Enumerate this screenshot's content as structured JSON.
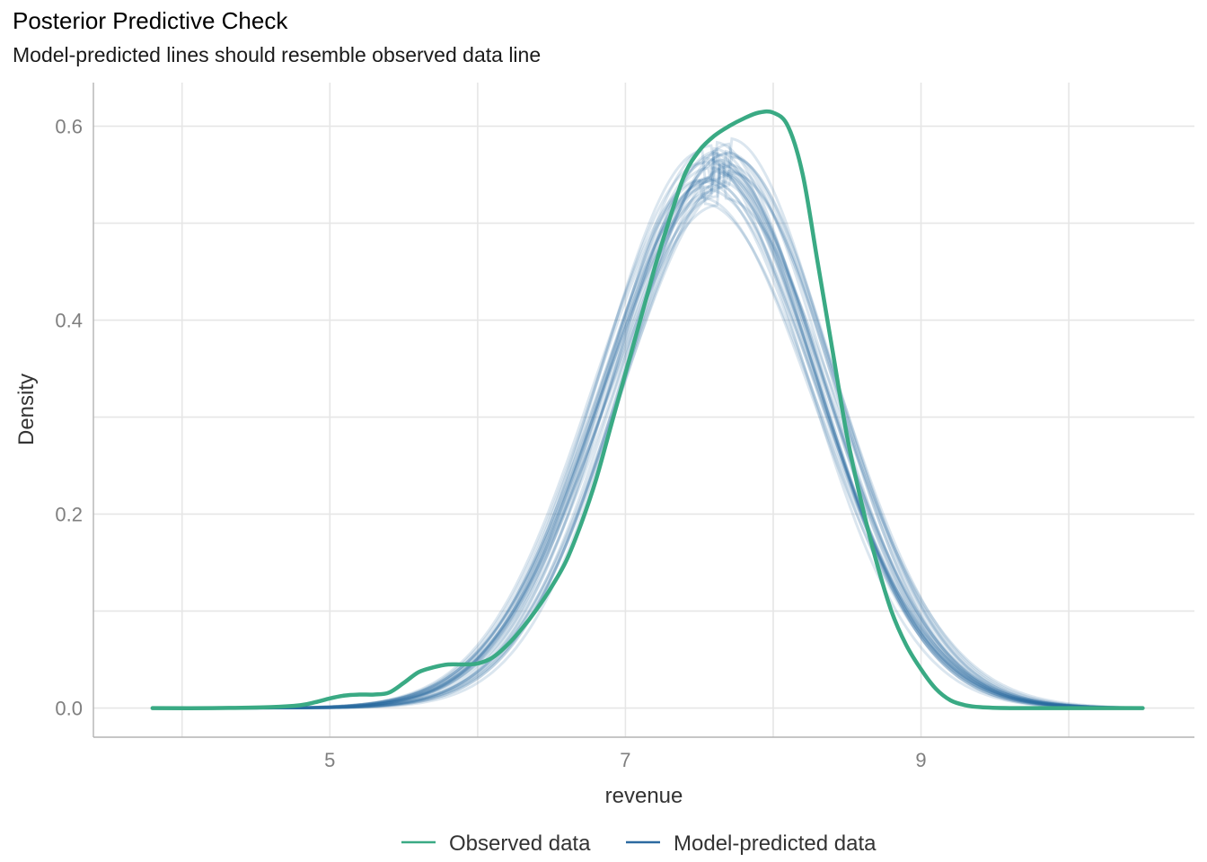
{
  "chart_data": {
    "type": "line",
    "title": "Posterior Predictive Check",
    "subtitle": "Model-predicted lines should resemble observed data line",
    "xlabel": "revenue",
    "ylabel": "Density",
    "xlim": [
      3.4,
      10.85
    ],
    "ylim": [
      -0.03,
      0.645
    ],
    "x_ticks": [
      5,
      7,
      9
    ],
    "x_tick_labels": [
      "5",
      "7",
      "9"
    ],
    "y_ticks": [
      0.0,
      0.2,
      0.4,
      0.6
    ],
    "y_tick_labels": [
      "0.0",
      "0.2",
      "0.4",
      "0.6"
    ],
    "grid": true,
    "legend_position": "bottom",
    "colors": {
      "observed": "#3aaa84",
      "predicted": "#2c6aa0"
    },
    "series": [
      {
        "name": "Observed data",
        "role": "observed",
        "x": [
          3.8,
          4.2,
          4.6,
          4.8,
          4.9,
          5.0,
          5.1,
          5.2,
          5.3,
          5.4,
          5.5,
          5.6,
          5.7,
          5.8,
          5.9,
          6.0,
          6.1,
          6.2,
          6.3,
          6.4,
          6.5,
          6.6,
          6.7,
          6.8,
          6.9,
          7.0,
          7.1,
          7.2,
          7.3,
          7.4,
          7.5,
          7.6,
          7.7,
          7.8,
          7.9,
          8.0,
          8.1,
          8.2,
          8.3,
          8.4,
          8.5,
          8.6,
          8.7,
          8.8,
          8.9,
          9.0,
          9.1,
          9.2,
          9.3,
          9.4,
          9.6,
          10.0,
          10.5
        ],
        "y": [
          0.0,
          0.0,
          0.001,
          0.003,
          0.006,
          0.01,
          0.013,
          0.014,
          0.014,
          0.016,
          0.026,
          0.037,
          0.042,
          0.045,
          0.045,
          0.046,
          0.052,
          0.065,
          0.082,
          0.102,
          0.125,
          0.152,
          0.19,
          0.235,
          0.29,
          0.345,
          0.4,
          0.455,
          0.505,
          0.55,
          0.575,
          0.59,
          0.6,
          0.608,
          0.614,
          0.614,
          0.6,
          0.55,
          0.46,
          0.37,
          0.28,
          0.21,
          0.15,
          0.1,
          0.065,
          0.04,
          0.02,
          0.008,
          0.003,
          0.001,
          0.0,
          0.0,
          0.0
        ]
      },
      {
        "name": "Model-predicted data",
        "role": "predicted",
        "draws": 30,
        "mean_x": 7.62,
        "sd_x": 0.72,
        "peak_density_range": [
          0.545,
          0.605
        ],
        "x_range": [
          3.8,
          10.5
        ]
      }
    ]
  }
}
